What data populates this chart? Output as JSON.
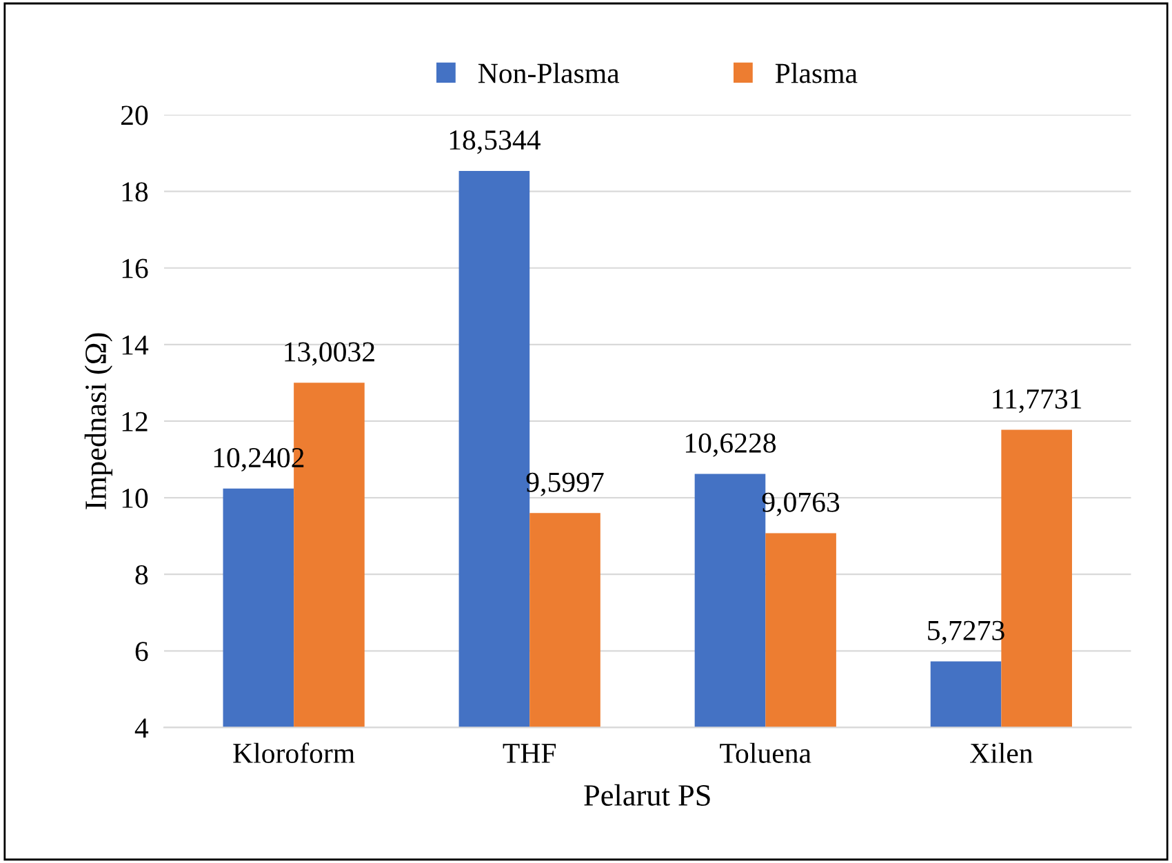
{
  "chart_data": {
    "type": "bar",
    "xlabel": "Pelarut PS",
    "ylabel": "Impednasi (Ω)",
    "categories": [
      "Kloroform",
      "THF",
      "Toluena",
      "Xilen"
    ],
    "series": [
      {
        "name": "Non-Plasma",
        "color": "#4472c4",
        "values": [
          10.2402,
          18.5344,
          10.6228,
          5.7273
        ],
        "value_labels": [
          "10,2402",
          "18,5344",
          "10,6228",
          "5,7273"
        ]
      },
      {
        "name": "Plasma",
        "color": "#ed7d31",
        "values": [
          13.0032,
          9.5997,
          9.0763,
          11.7731
        ],
        "value_labels": [
          "13,0032",
          "9,5997",
          "9,0763",
          "11,7731"
        ]
      }
    ],
    "ylim": [
      4,
      20
    ],
    "yticks": [
      4,
      6,
      8,
      10,
      12,
      14,
      16,
      18,
      20
    ],
    "grid": "y",
    "legend": "top"
  }
}
